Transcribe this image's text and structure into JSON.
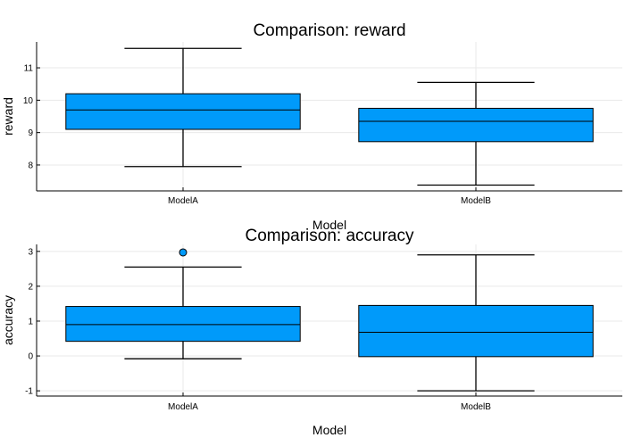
{
  "chart_data": [
    {
      "type": "box",
      "title": "Comparison: reward",
      "xlabel": "Model",
      "ylabel": "reward",
      "categories": [
        "ModelA",
        "ModelB"
      ],
      "yticks": [
        8,
        9,
        10,
        11
      ],
      "ylim": [
        7.2,
        11.8
      ],
      "grid": true,
      "fill_color": "#009AFA",
      "boxes": [
        {
          "name": "ModelA",
          "whisker_low": 7.95,
          "q1": 9.1,
          "median": 9.7,
          "q3": 10.2,
          "whisker_high": 11.6,
          "outliers": []
        },
        {
          "name": "ModelB",
          "whisker_low": 7.38,
          "q1": 8.72,
          "median": 9.35,
          "q3": 9.75,
          "whisker_high": 10.55,
          "outliers": []
        }
      ]
    },
    {
      "type": "box",
      "title": "Comparison: accuracy",
      "xlabel": "Model",
      "ylabel": "accuracy",
      "categories": [
        "ModelA",
        "ModelB"
      ],
      "yticks": [
        -1,
        0,
        1,
        2,
        3
      ],
      "ylim": [
        -1.15,
        3.2
      ],
      "grid": true,
      "fill_color": "#009AFA",
      "boxes": [
        {
          "name": "ModelA",
          "whisker_low": -0.08,
          "q1": 0.42,
          "median": 0.9,
          "q3": 1.42,
          "whisker_high": 2.55,
          "outliers": [
            2.97
          ]
        },
        {
          "name": "ModelB",
          "whisker_low": -1.0,
          "q1": -0.02,
          "median": 0.68,
          "q3": 1.45,
          "whisker_high": 2.9,
          "outliers": []
        }
      ]
    }
  ]
}
